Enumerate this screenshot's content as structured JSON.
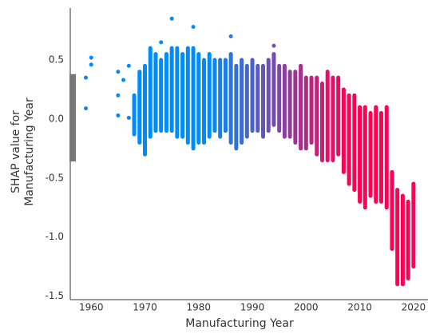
{
  "chart_data": {
    "type": "scatter",
    "xlabel": "Manufacturing Year",
    "ylabel_lines": [
      "SHAP value for",
      "Manufacturing Year"
    ],
    "xlim": [
      1956.1,
      2022.7
    ],
    "xticks": [
      1960,
      1970,
      1980,
      1990,
      2000,
      2010,
      2020
    ],
    "ylim": [
      -1.53,
      0.94
    ],
    "yticks": [
      0.5,
      {
        "value": 0,
        "label": "0.0"
      },
      -0.5,
      {
        "value": -1,
        "label": "-1.0"
      },
      -1.5
    ],
    "colormap": [
      "#008bfb",
      "#ff0052"
    ],
    "color_range": [
      1982,
      2008
    ],
    "side_bar": {
      "color": "#777777",
      "low": -0.36,
      "high": 0.38
    },
    "ranges": {
      "x": [
        1968,
        1969,
        1970,
        1971,
        1972,
        1973,
        1974,
        1975,
        1976,
        1977,
        1978,
        1979,
        1980,
        1981,
        1982,
        1983,
        1984,
        1985,
        1986,
        1987,
        1988,
        1989,
        1990,
        1991,
        1992,
        1993,
        1994,
        1995,
        1996,
        1997,
        1998,
        1999,
        2000,
        2001,
        2002,
        2003,
        2004,
        2005,
        2006,
        2007,
        2008,
        2009,
        2010,
        2011,
        2012,
        2013,
        2014,
        2015,
        2016,
        2017,
        2018,
        2019,
        2020
      ],
      "low": [
        -0.13,
        -0.2,
        -0.3,
        -0.15,
        -0.1,
        -0.1,
        -0.1,
        -0.1,
        -0.15,
        -0.15,
        -0.2,
        -0.25,
        -0.2,
        -0.2,
        -0.15,
        -0.1,
        -0.15,
        -0.1,
        -0.2,
        -0.25,
        -0.2,
        -0.15,
        -0.1,
        -0.1,
        -0.15,
        -0.1,
        -0.05,
        -0.1,
        -0.15,
        -0.15,
        -0.2,
        -0.25,
        -0.25,
        -0.2,
        -0.3,
        -0.35,
        -0.35,
        -0.35,
        -0.3,
        -0.45,
        -0.55,
        -0.6,
        -0.7,
        -0.75,
        -0.65,
        -0.7,
        -0.7,
        -0.75,
        -1.1,
        -1.4,
        -1.4,
        -1.35,
        -1.25
      ],
      "high": [
        0.2,
        0.4,
        0.45,
        0.6,
        0.55,
        0.5,
        0.55,
        0.6,
        0.6,
        0.55,
        0.6,
        0.6,
        0.55,
        0.5,
        0.55,
        0.5,
        0.5,
        0.5,
        0.55,
        0.45,
        0.5,
        0.45,
        0.5,
        0.45,
        0.45,
        0.5,
        0.55,
        0.45,
        0.45,
        0.4,
        0.4,
        0.45,
        0.35,
        0.35,
        0.35,
        0.3,
        0.4,
        0.35,
        0.35,
        0.25,
        0.2,
        0.2,
        0.1,
        0.1,
        0.05,
        0.1,
        0.05,
        0.1,
        -0.45,
        -0.6,
        -0.65,
        -0.7,
        -0.55
      ]
    },
    "points": {
      "x": [
        1959,
        1959,
        1960,
        1960,
        1965,
        1965,
        1965,
        1966,
        1967,
        1967,
        1973,
        1975,
        1979,
        1986,
        1994,
        2020
      ],
      "y": [
        0.09,
        0.35,
        0.46,
        0.52,
        0.4,
        0.2,
        0.03,
        0.33,
        0.45,
        0.01,
        0.65,
        0.85,
        0.78,
        0.7,
        0.62,
        -0.55
      ]
    }
  }
}
